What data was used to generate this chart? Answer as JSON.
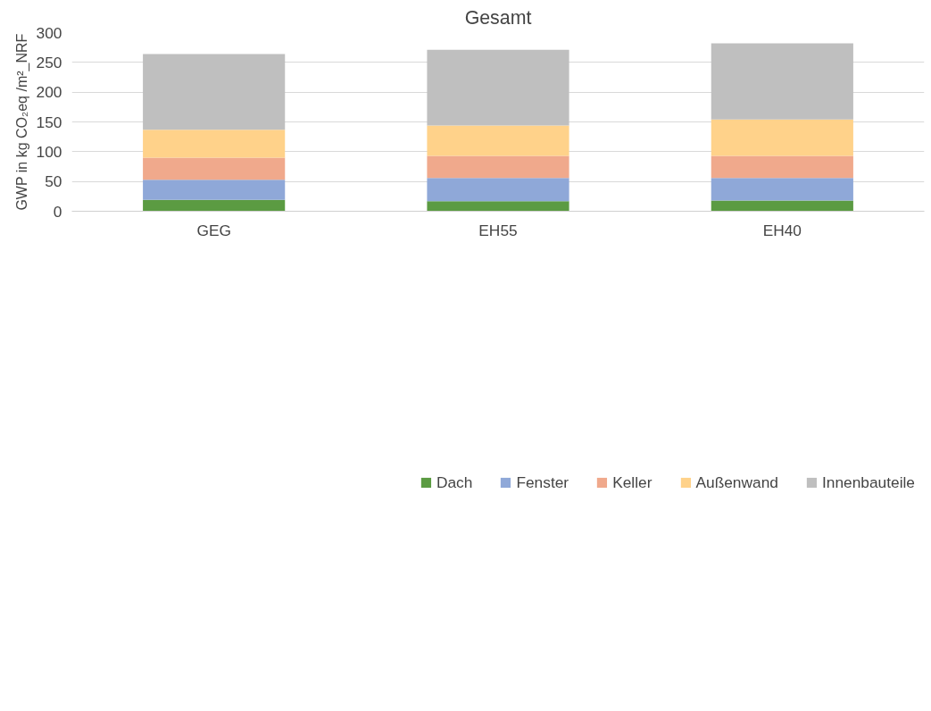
{
  "chart_data": {
    "type": "bar",
    "title": "Gesamt",
    "ylabel": "GWP in kg CO₂eq /m²_NRF",
    "categories": [
      "GEG",
      "EH55",
      "EH40"
    ],
    "stacked": true,
    "series": [
      {
        "name": "Dach",
        "color": "#5b9b42",
        "values": [
          19,
          17,
          18
        ]
      },
      {
        "name": "Fenster",
        "color": "#8fa8d8",
        "values": [
          34,
          39,
          38
        ]
      },
      {
        "name": "Keller",
        "color": "#f0a98c",
        "values": [
          37,
          37,
          37
        ]
      },
      {
        "name": "Außenwand",
        "color": "#ffd28a",
        "values": [
          47,
          51,
          61
        ]
      },
      {
        "name": "Innenbauteile",
        "color": "#bfbfbf",
        "values": [
          127,
          127,
          128
        ]
      }
    ],
    "ylim": [
      0,
      300
    ],
    "yticks": [
      0,
      50,
      100,
      150,
      200,
      250,
      300
    ],
    "grid": "y",
    "legend": "bottom"
  }
}
